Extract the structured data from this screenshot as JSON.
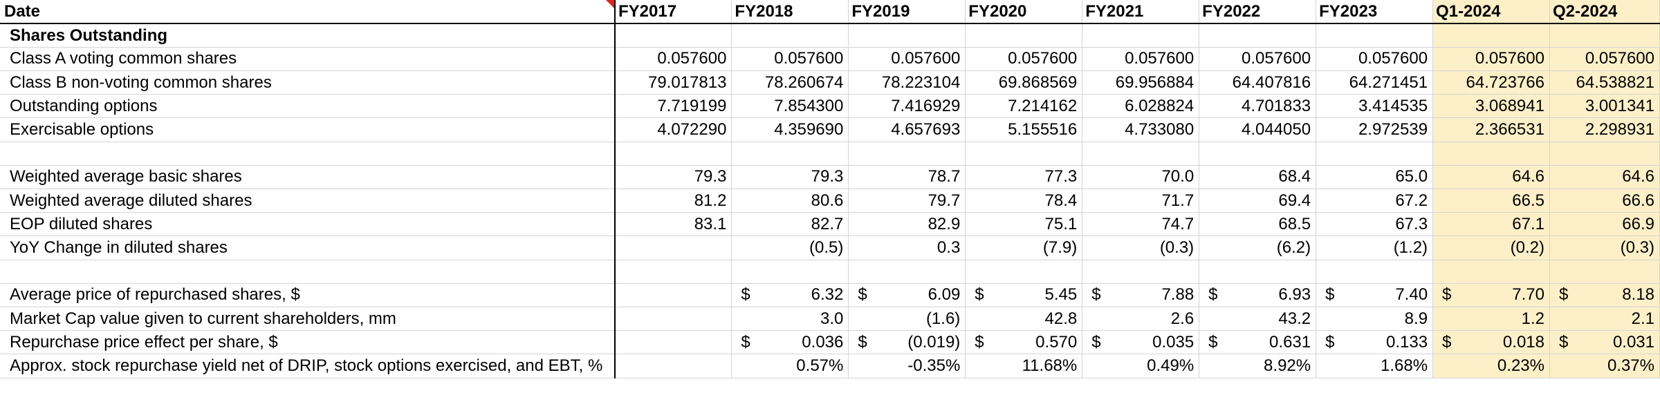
{
  "header": {
    "label": "Date",
    "periods": [
      "FY2017",
      "FY2018",
      "FY2019",
      "FY2020",
      "FY2021",
      "FY2022",
      "FY2023",
      "Q1-2024",
      "Q2-2024"
    ]
  },
  "colors": {
    "highlight": "#fdf0c8",
    "comment_marker": "#e0241b",
    "grid": "#d4d4d4"
  },
  "rows": [
    {
      "label": "Shares Outstanding",
      "section": true,
      "cells": []
    },
    {
      "label": "Class A voting common shares",
      "cells": [
        "0.057600",
        "0.057600",
        "0.057600",
        "0.057600",
        "0.057600",
        "0.057600",
        "0.057600",
        "0.057600",
        "0.057600"
      ]
    },
    {
      "label": "Class B non-voting common shares",
      "cells": [
        "79.017813",
        "78.260674",
        "78.223104",
        "69.868569",
        "69.956884",
        "64.407816",
        "64.271451",
        "64.723766",
        "64.538821"
      ]
    },
    {
      "label": "Outstanding options",
      "cells": [
        "7.719199",
        "7.854300",
        "7.416929",
        "7.214162",
        "6.028824",
        "4.701833",
        "3.414535",
        "3.068941",
        "3.001341"
      ]
    },
    {
      "label": "Exercisable options",
      "cells": [
        "4.072290",
        "4.359690",
        "4.657693",
        "5.155516",
        "4.733080",
        "4.044050",
        "2.972539",
        "2.366531",
        "2.298931"
      ]
    },
    {
      "label": "",
      "cells": []
    },
    {
      "label": "Weighted average basic shares",
      "cells": [
        "79.3",
        "79.3",
        "78.7",
        "77.3",
        "70.0",
        "68.4",
        "65.0",
        "64.6",
        "64.6"
      ]
    },
    {
      "label": "Weighted average diluted shares",
      "cells": [
        "81.2",
        "80.6",
        "79.7",
        "78.4",
        "71.7",
        "69.4",
        "67.2",
        "66.5",
        "66.6"
      ]
    },
    {
      "label": "EOP diluted shares",
      "cells": [
        "83.1",
        "82.7",
        "82.9",
        "75.1",
        "74.7",
        "68.5",
        "67.3",
        "67.1",
        "66.9"
      ]
    },
    {
      "label": "YoY Change in diluted shares",
      "cells": [
        "",
        "(0.5)",
        "0.3",
        "(7.9)",
        "(0.3)",
        "(6.2)",
        "(1.2)",
        "(0.2)",
        "(0.3)"
      ]
    },
    {
      "label": "",
      "cells": []
    },
    {
      "label": "Average price of repurchased shares, $",
      "currency": true,
      "cells": [
        "",
        "6.32",
        "6.09",
        "5.45",
        "7.88",
        "6.93",
        "7.40",
        "7.70",
        "8.18"
      ]
    },
    {
      "label": "Market Cap value given to current shareholders, mm",
      "cells": [
        "",
        "3.0",
        "(1.6)",
        "42.8",
        "2.6",
        "43.2",
        "8.9",
        "1.2",
        "2.1"
      ]
    },
    {
      "label": "Repurchase price effect per share, $",
      "currency": true,
      "cells": [
        "",
        "0.036",
        "(0.019)",
        "0.570",
        "0.035",
        "0.631",
        "0.133",
        "0.018",
        "0.031"
      ]
    },
    {
      "label": "Approx. stock repurchase yield net of DRIP, stock options exercised, and EBT, %",
      "cells": [
        "",
        "0.57%",
        "-0.35%",
        "11.68%",
        "0.49%",
        "8.92%",
        "1.68%",
        "0.23%",
        "0.37%"
      ]
    }
  ]
}
